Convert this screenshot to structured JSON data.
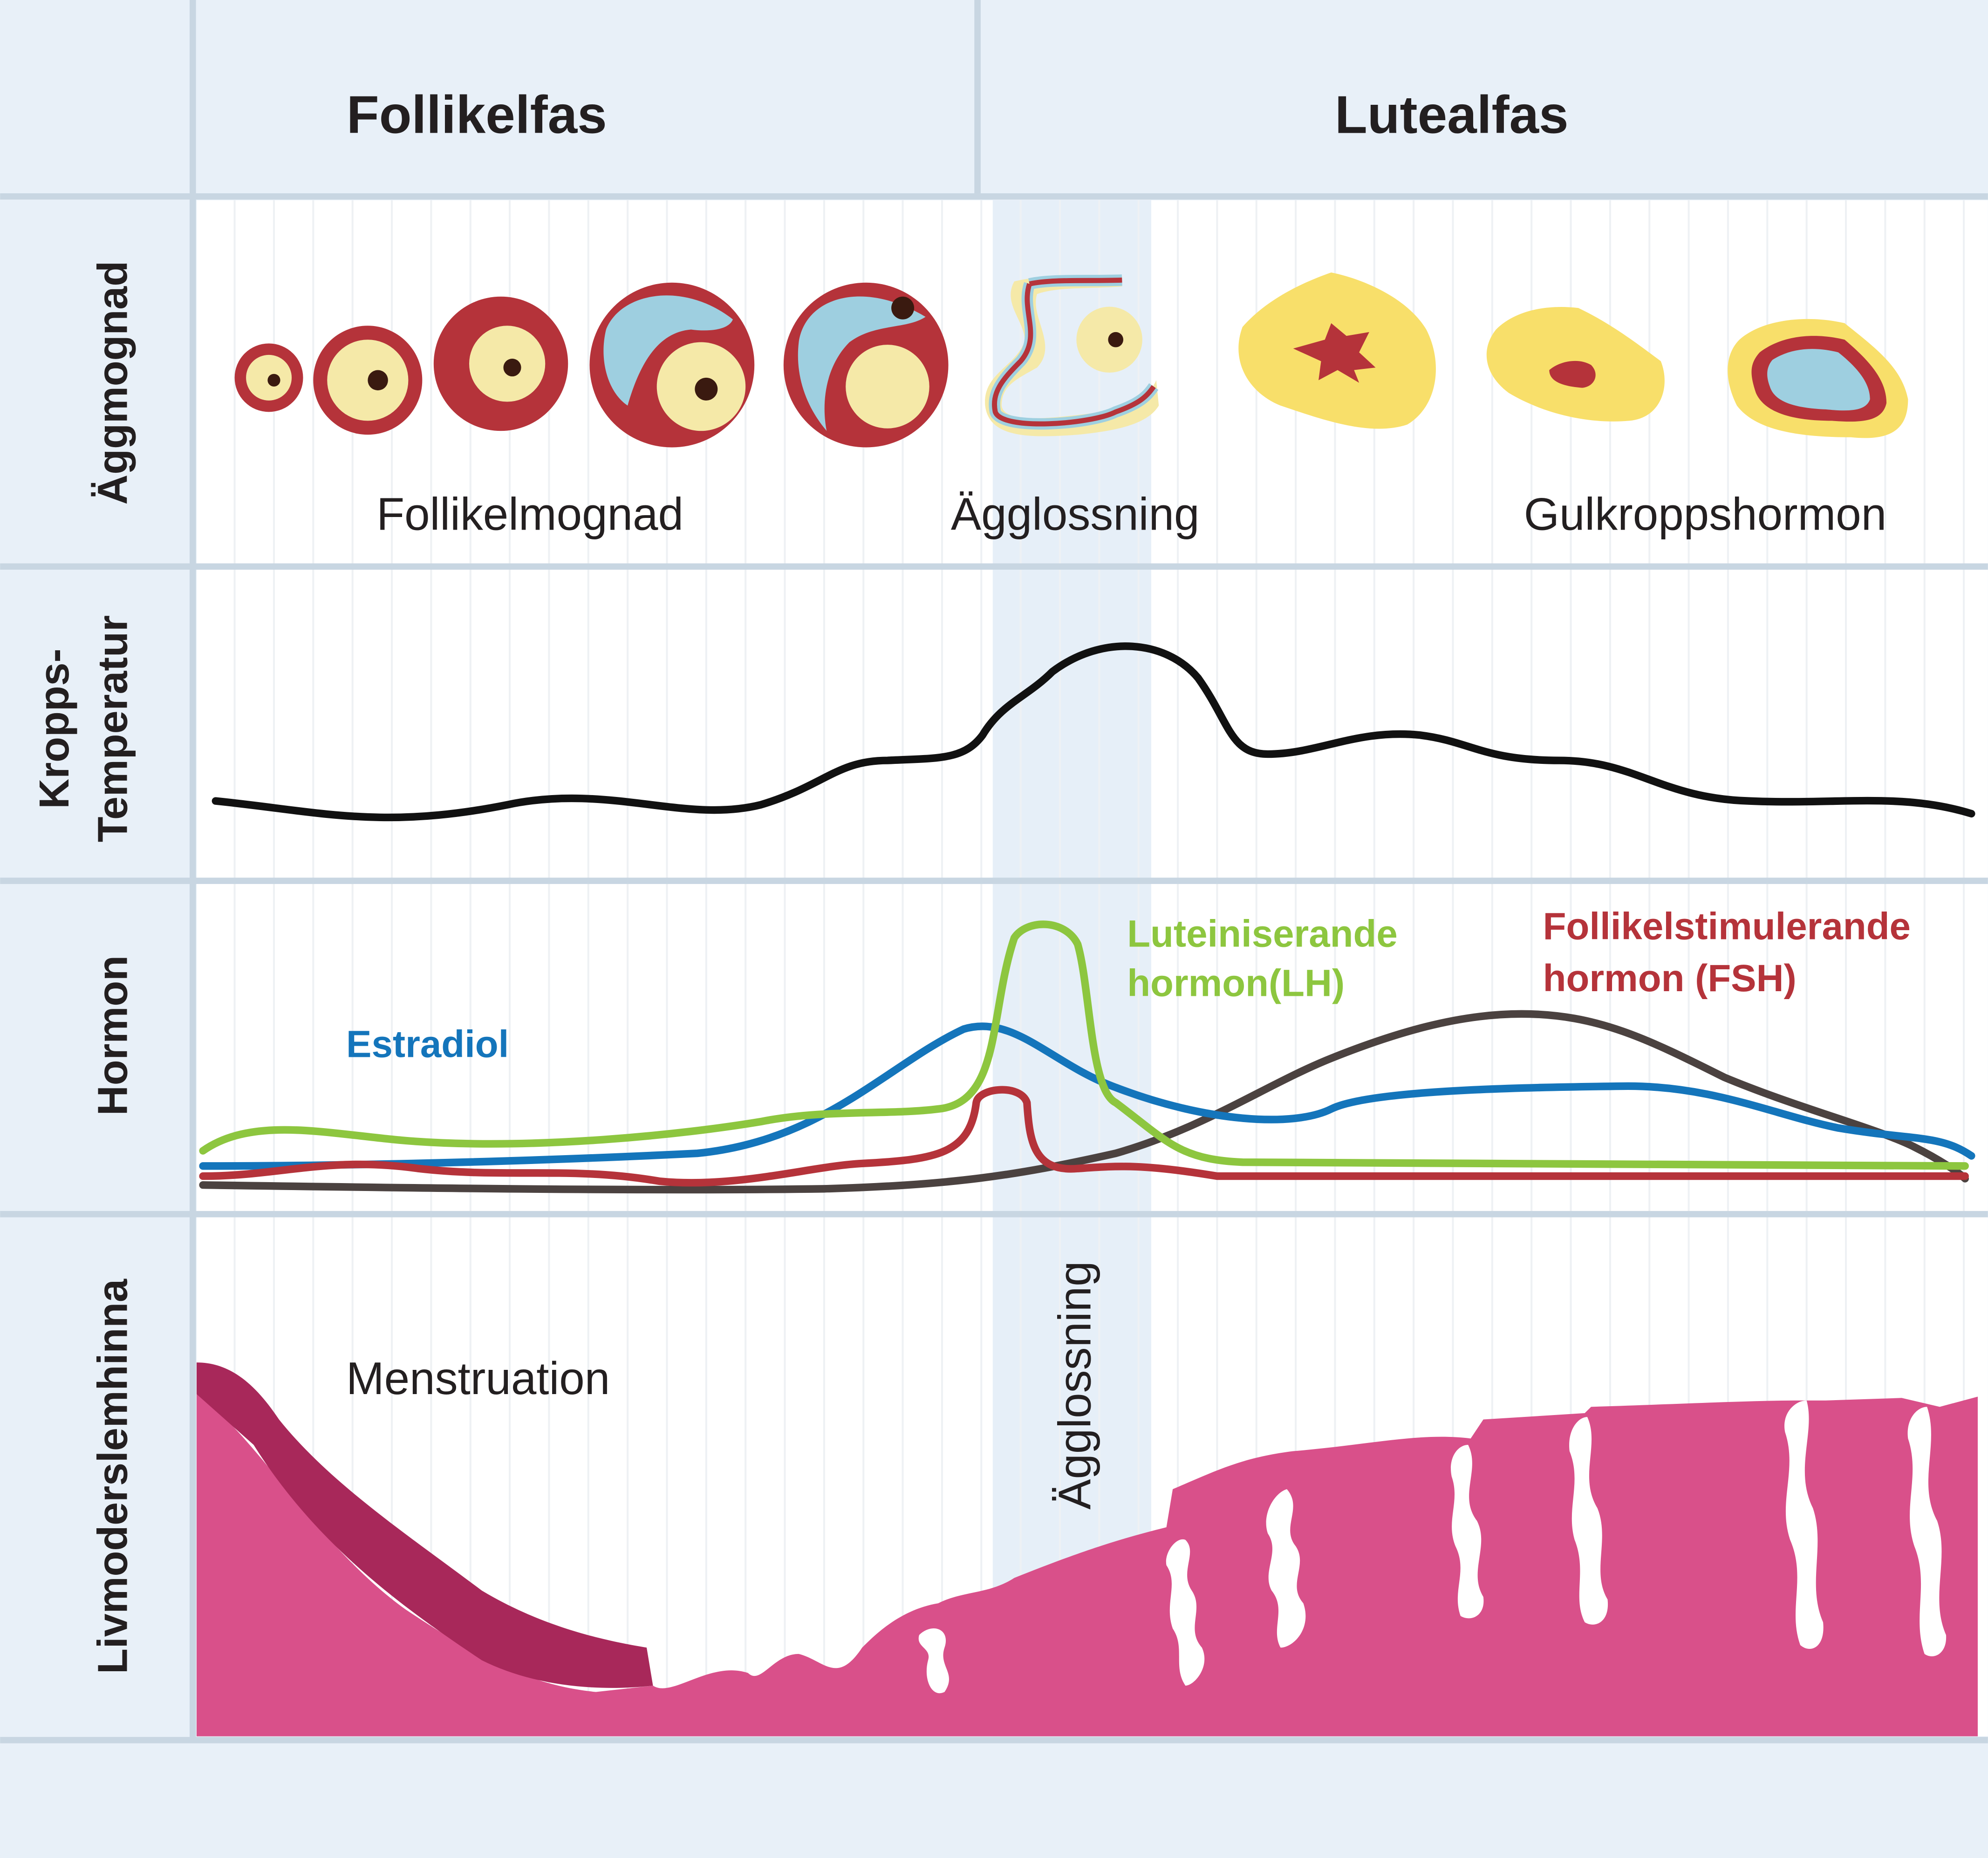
{
  "header": {
    "phases": [
      "Follikelfas",
      "Lutealfas"
    ]
  },
  "rows": [
    {
      "label_lines": [
        "Äggmognad"
      ]
    },
    {
      "label_lines": [
        "Kropps-",
        "Temperatur"
      ]
    },
    {
      "label_lines": [
        "Hormon"
      ]
    },
    {
      "label_lines": [
        "Livmoderslemhinna"
      ]
    }
  ],
  "egg_stages": [
    "Follikelmognad",
    "Ägglossning",
    "Gulkroppshormon"
  ],
  "hormones": [
    {
      "label_lines": [
        "Estradiol"
      ]
    },
    {
      "label_lines": [
        "Luteiniserande",
        "hormon(LH)"
      ]
    },
    {
      "label_lines": [
        "Follikelstimulerande",
        "hormon (FSH)"
      ]
    }
  ],
  "endometrium": {
    "menstruation": "Menstruation",
    "ovulation": "Ägglossning"
  }
}
